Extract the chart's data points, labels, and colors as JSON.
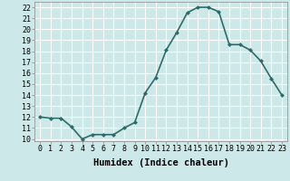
{
  "x": [
    0,
    1,
    2,
    3,
    4,
    5,
    6,
    7,
    8,
    9,
    10,
    11,
    12,
    13,
    14,
    15,
    16,
    17,
    18,
    19,
    20,
    21,
    22,
    23
  ],
  "y": [
    12.0,
    11.9,
    11.9,
    11.1,
    10.0,
    10.4,
    10.4,
    10.4,
    11.0,
    11.5,
    14.2,
    15.6,
    18.1,
    19.7,
    21.5,
    22.0,
    22.0,
    21.6,
    18.6,
    18.6,
    18.1,
    17.1,
    15.5,
    14.0
  ],
  "line_color": "#2d6b6b",
  "marker": "D",
  "marker_size": 2.0,
  "bg_color": "#cde8e8",
  "grid_color": "#b8d8d8",
  "xlabel": "Humidex (Indice chaleur)",
  "xlim": [
    -0.5,
    23.5
  ],
  "ylim": [
    9.8,
    22.5
  ],
  "yticks": [
    10,
    11,
    12,
    13,
    14,
    15,
    16,
    17,
    18,
    19,
    20,
    21,
    22
  ],
  "xticks": [
    0,
    1,
    2,
    3,
    4,
    5,
    6,
    7,
    8,
    9,
    10,
    11,
    12,
    13,
    14,
    15,
    16,
    17,
    18,
    19,
    20,
    21,
    22,
    23
  ],
  "xtick_labels": [
    "0",
    "1",
    "2",
    "3",
    "4",
    "5",
    "6",
    "7",
    "8",
    "9",
    "10",
    "11",
    "12",
    "13",
    "14",
    "15",
    "16",
    "17",
    "18",
    "19",
    "20",
    "21",
    "22",
    "23"
  ],
  "xlabel_fontsize": 7.5,
  "tick_fontsize": 6,
  "linewidth": 1.2
}
